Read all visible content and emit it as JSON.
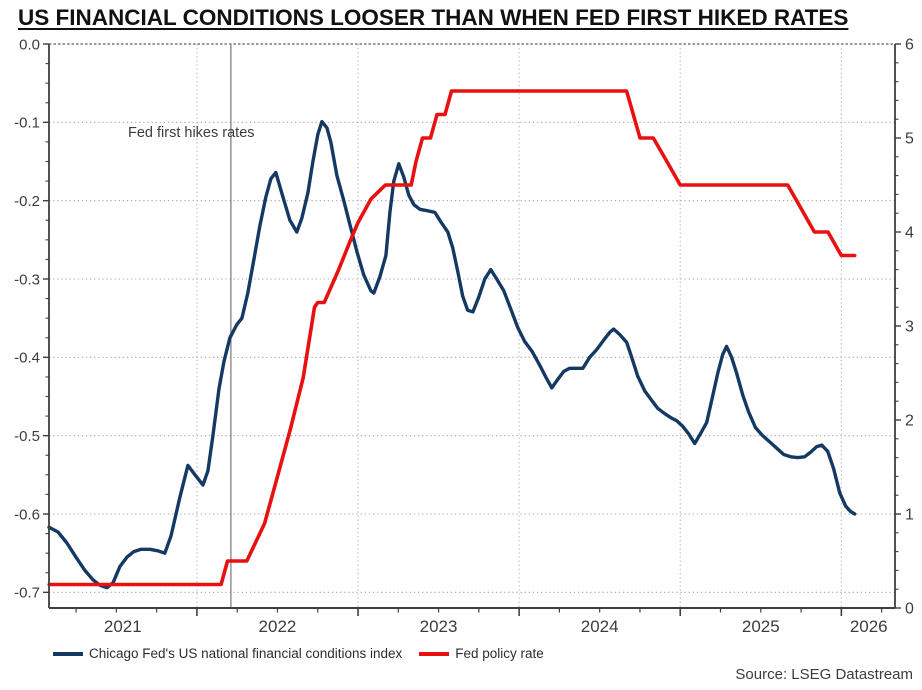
{
  "title": "US FINANCIAL CONDITIONS LOOSER THAN WHEN FED FIRST HIKED RATES",
  "source": "Source: LSEG Datastream",
  "annotation": {
    "label": "Fed first hikes rates",
    "t": 2022.211
  },
  "legend": [
    {
      "label": "Chicago Fed's US national financial conditions index",
      "color": "#143a63"
    },
    {
      "label": "Fed policy rate",
      "color": "#e81010"
    }
  ],
  "chart_data": {
    "type": "line",
    "title": "US FINANCIAL CONDITIONS LOOSER THAN WHEN FED FIRST HIKED RATES",
    "x_axis": {
      "unit": "decimal_year",
      "range": [
        2021.082,
        2026.333
      ],
      "gridline_years": [
        2022,
        2023,
        2024,
        2025,
        2026
      ],
      "minor_tick_step": 0.25,
      "labels": [
        {
          "label": "2021",
          "t": 2021.54
        },
        {
          "label": "2022",
          "t": 2022.5
        },
        {
          "label": "2023",
          "t": 2023.5
        },
        {
          "label": "2024",
          "t": 2024.5
        },
        {
          "label": "2025",
          "t": 2025.5
        },
        {
          "label": "2026",
          "t": 2026.17
        }
      ]
    },
    "left_axis": {
      "range": [
        0,
        -0.72
      ],
      "ticks": [
        {
          "v": 0,
          "label": "0.0"
        },
        {
          "v": -0.1,
          "label": "-0.1"
        },
        {
          "v": -0.2,
          "label": "-0.2"
        },
        {
          "v": -0.3,
          "label": "-0.3"
        },
        {
          "v": -0.4,
          "label": "-0.4"
        },
        {
          "v": -0.5,
          "label": "-0.5"
        },
        {
          "v": -0.6,
          "label": "-0.6"
        },
        {
          "v": -0.7,
          "label": "-0.7"
        }
      ]
    },
    "right_axis": {
      "range": [
        6,
        0
      ],
      "ticks": [
        {
          "v": 6,
          "label": "6"
        },
        {
          "v": 5,
          "label": "5"
        },
        {
          "v": 4,
          "label": "4"
        },
        {
          "v": 3,
          "label": "3"
        },
        {
          "v": 2,
          "label": "2"
        },
        {
          "v": 1,
          "label": "1"
        },
        {
          "v": 0,
          "label": "0"
        }
      ]
    },
    "styles": {
      "gridline_color": "#a8a8a8",
      "event_line_color": "#8a8a8a",
      "spine_color": "#3f3f3f",
      "top_border_color": "#9a9a9a"
    },
    "series": [
      {
        "name": "Chicago Fed's US national financial conditions index",
        "axis": "left",
        "color": "#143a63",
        "width": 3.4,
        "points": [
          [
            2021.082,
            -0.617
          ],
          [
            2021.138,
            -0.623
          ],
          [
            2021.193,
            -0.637
          ],
          [
            2021.249,
            -0.655
          ],
          [
            2021.305,
            -0.672
          ],
          [
            2021.355,
            -0.684
          ],
          [
            2021.398,
            -0.691
          ],
          [
            2021.442,
            -0.694
          ],
          [
            2021.479,
            -0.688
          ],
          [
            2021.522,
            -0.667
          ],
          [
            2021.566,
            -0.655
          ],
          [
            2021.609,
            -0.648
          ],
          [
            2021.653,
            -0.645
          ],
          [
            2021.708,
            -0.645
          ],
          [
            2021.758,
            -0.647
          ],
          [
            2021.801,
            -0.65
          ],
          [
            2021.839,
            -0.628
          ],
          [
            2021.895,
            -0.578
          ],
          [
            2021.944,
            -0.538
          ],
          [
            2021.988,
            -0.55
          ],
          [
            2022.037,
            -0.563
          ],
          [
            2022.068,
            -0.545
          ],
          [
            2022.099,
            -0.5
          ],
          [
            2022.137,
            -0.44
          ],
          [
            2022.168,
            -0.405
          ],
          [
            2022.205,
            -0.375
          ],
          [
            2022.248,
            -0.358
          ],
          [
            2022.279,
            -0.35
          ],
          [
            2022.316,
            -0.318
          ],
          [
            2022.354,
            -0.275
          ],
          [
            2022.391,
            -0.232
          ],
          [
            2022.428,
            -0.195
          ],
          [
            2022.459,
            -0.172
          ],
          [
            2022.49,
            -0.164
          ],
          [
            2022.534,
            -0.195
          ],
          [
            2022.577,
            -0.225
          ],
          [
            2022.62,
            -0.24
          ],
          [
            2022.652,
            -0.222
          ],
          [
            2022.689,
            -0.19
          ],
          [
            2022.72,
            -0.15
          ],
          [
            2022.751,
            -0.115
          ],
          [
            2022.776,
            -0.099
          ],
          [
            2022.807,
            -0.107
          ],
          [
            2022.831,
            -0.125
          ],
          [
            2022.869,
            -0.168
          ],
          [
            2022.912,
            -0.2
          ],
          [
            2022.949,
            -0.23
          ],
          [
            2022.993,
            -0.265
          ],
          [
            2023.036,
            -0.295
          ],
          [
            2023.08,
            -0.315
          ],
          [
            2023.098,
            -0.318
          ],
          [
            2023.136,
            -0.297
          ],
          [
            2023.173,
            -0.27
          ],
          [
            2023.198,
            -0.215
          ],
          [
            2023.222,
            -0.175
          ],
          [
            2023.253,
            -0.153
          ],
          [
            2023.284,
            -0.17
          ],
          [
            2023.315,
            -0.193
          ],
          [
            2023.346,
            -0.205
          ],
          [
            2023.384,
            -0.211
          ],
          [
            2023.433,
            -0.213
          ],
          [
            2023.477,
            -0.215
          ],
          [
            2023.514,
            -0.227
          ],
          [
            2023.557,
            -0.24
          ],
          [
            2023.588,
            -0.26
          ],
          [
            2023.619,
            -0.29
          ],
          [
            2023.65,
            -0.322
          ],
          [
            2023.681,
            -0.34
          ],
          [
            2023.713,
            -0.342
          ],
          [
            2023.75,
            -0.323
          ],
          [
            2023.787,
            -0.3
          ],
          [
            2023.824,
            -0.288
          ],
          [
            2023.861,
            -0.3
          ],
          [
            2023.905,
            -0.315
          ],
          [
            2023.948,
            -0.338
          ],
          [
            2023.992,
            -0.362
          ],
          [
            2024.035,
            -0.38
          ],
          [
            2024.079,
            -0.392
          ],
          [
            2024.128,
            -0.41
          ],
          [
            2024.165,
            -0.425
          ],
          [
            2024.203,
            -0.439
          ],
          [
            2024.24,
            -0.428
          ],
          [
            2024.277,
            -0.418
          ],
          [
            2024.314,
            -0.414
          ],
          [
            2024.358,
            -0.414
          ],
          [
            2024.395,
            -0.414
          ],
          [
            2024.438,
            -0.4
          ],
          [
            2024.482,
            -0.39
          ],
          [
            2024.525,
            -0.378
          ],
          [
            2024.563,
            -0.368
          ],
          [
            2024.587,
            -0.364
          ],
          [
            2024.625,
            -0.371
          ],
          [
            2024.668,
            -0.381
          ],
          [
            2024.699,
            -0.4
          ],
          [
            2024.736,
            -0.424
          ],
          [
            2024.78,
            -0.443
          ],
          [
            2024.823,
            -0.455
          ],
          [
            2024.86,
            -0.465
          ],
          [
            2024.904,
            -0.472
          ],
          [
            2024.941,
            -0.477
          ],
          [
            2024.978,
            -0.481
          ],
          [
            2025.015,
            -0.488
          ],
          [
            2025.053,
            -0.498
          ],
          [
            2025.09,
            -0.51
          ],
          [
            2025.127,
            -0.497
          ],
          [
            2025.164,
            -0.483
          ],
          [
            2025.195,
            -0.455
          ],
          [
            2025.233,
            -0.42
          ],
          [
            2025.264,
            -0.396
          ],
          [
            2025.288,
            -0.386
          ],
          [
            2025.319,
            -0.4
          ],
          [
            2025.35,
            -0.42
          ],
          [
            2025.388,
            -0.448
          ],
          [
            2025.425,
            -0.47
          ],
          [
            2025.468,
            -0.49
          ],
          [
            2025.512,
            -0.5
          ],
          [
            2025.555,
            -0.508
          ],
          [
            2025.599,
            -0.516
          ],
          [
            2025.642,
            -0.524
          ],
          [
            2025.686,
            -0.527
          ],
          [
            2025.729,
            -0.528
          ],
          [
            2025.772,
            -0.527
          ],
          [
            2025.81,
            -0.521
          ],
          [
            2025.847,
            -0.514
          ],
          [
            2025.878,
            -0.512
          ],
          [
            2025.915,
            -0.52
          ],
          [
            2025.952,
            -0.542
          ],
          [
            2025.99,
            -0.573
          ],
          [
            2026.027,
            -0.59
          ],
          [
            2026.058,
            -0.597
          ],
          [
            2026.083,
            -0.6
          ]
        ]
      },
      {
        "name": "Fed policy rate",
        "axis": "right",
        "color": "#e81010",
        "width": 3.6,
        "points": [
          [
            2021.083,
            0.25
          ],
          [
            2022.15,
            0.25
          ],
          [
            2022.19,
            0.5
          ],
          [
            2022.31,
            0.5
          ],
          [
            2022.42,
            0.9
          ],
          [
            2022.5,
            1.4
          ],
          [
            2022.58,
            1.9
          ],
          [
            2022.66,
            2.45
          ],
          [
            2022.73,
            3.2
          ],
          [
            2022.75,
            3.25
          ],
          [
            2022.79,
            3.25
          ],
          [
            2022.88,
            3.6
          ],
          [
            2022.95,
            3.9
          ],
          [
            2023.0,
            4.1
          ],
          [
            2023.08,
            4.35
          ],
          [
            2023.17,
            4.5
          ],
          [
            2023.33,
            4.5
          ],
          [
            2023.36,
            4.75
          ],
          [
            2023.4,
            5.0
          ],
          [
            2023.45,
            5.0
          ],
          [
            2023.49,
            5.25
          ],
          [
            2023.54,
            5.25
          ],
          [
            2023.58,
            5.5
          ],
          [
            2024.667,
            5.5
          ],
          [
            2024.75,
            5.0
          ],
          [
            2024.833,
            5.0
          ],
          [
            2024.917,
            4.75
          ],
          [
            2025.0,
            4.5
          ],
          [
            2025.667,
            4.5
          ],
          [
            2025.75,
            4.25
          ],
          [
            2025.833,
            4.0
          ],
          [
            2025.917,
            4.0
          ],
          [
            2026.0,
            3.75
          ],
          [
            2026.083,
            3.75
          ]
        ]
      }
    ]
  }
}
